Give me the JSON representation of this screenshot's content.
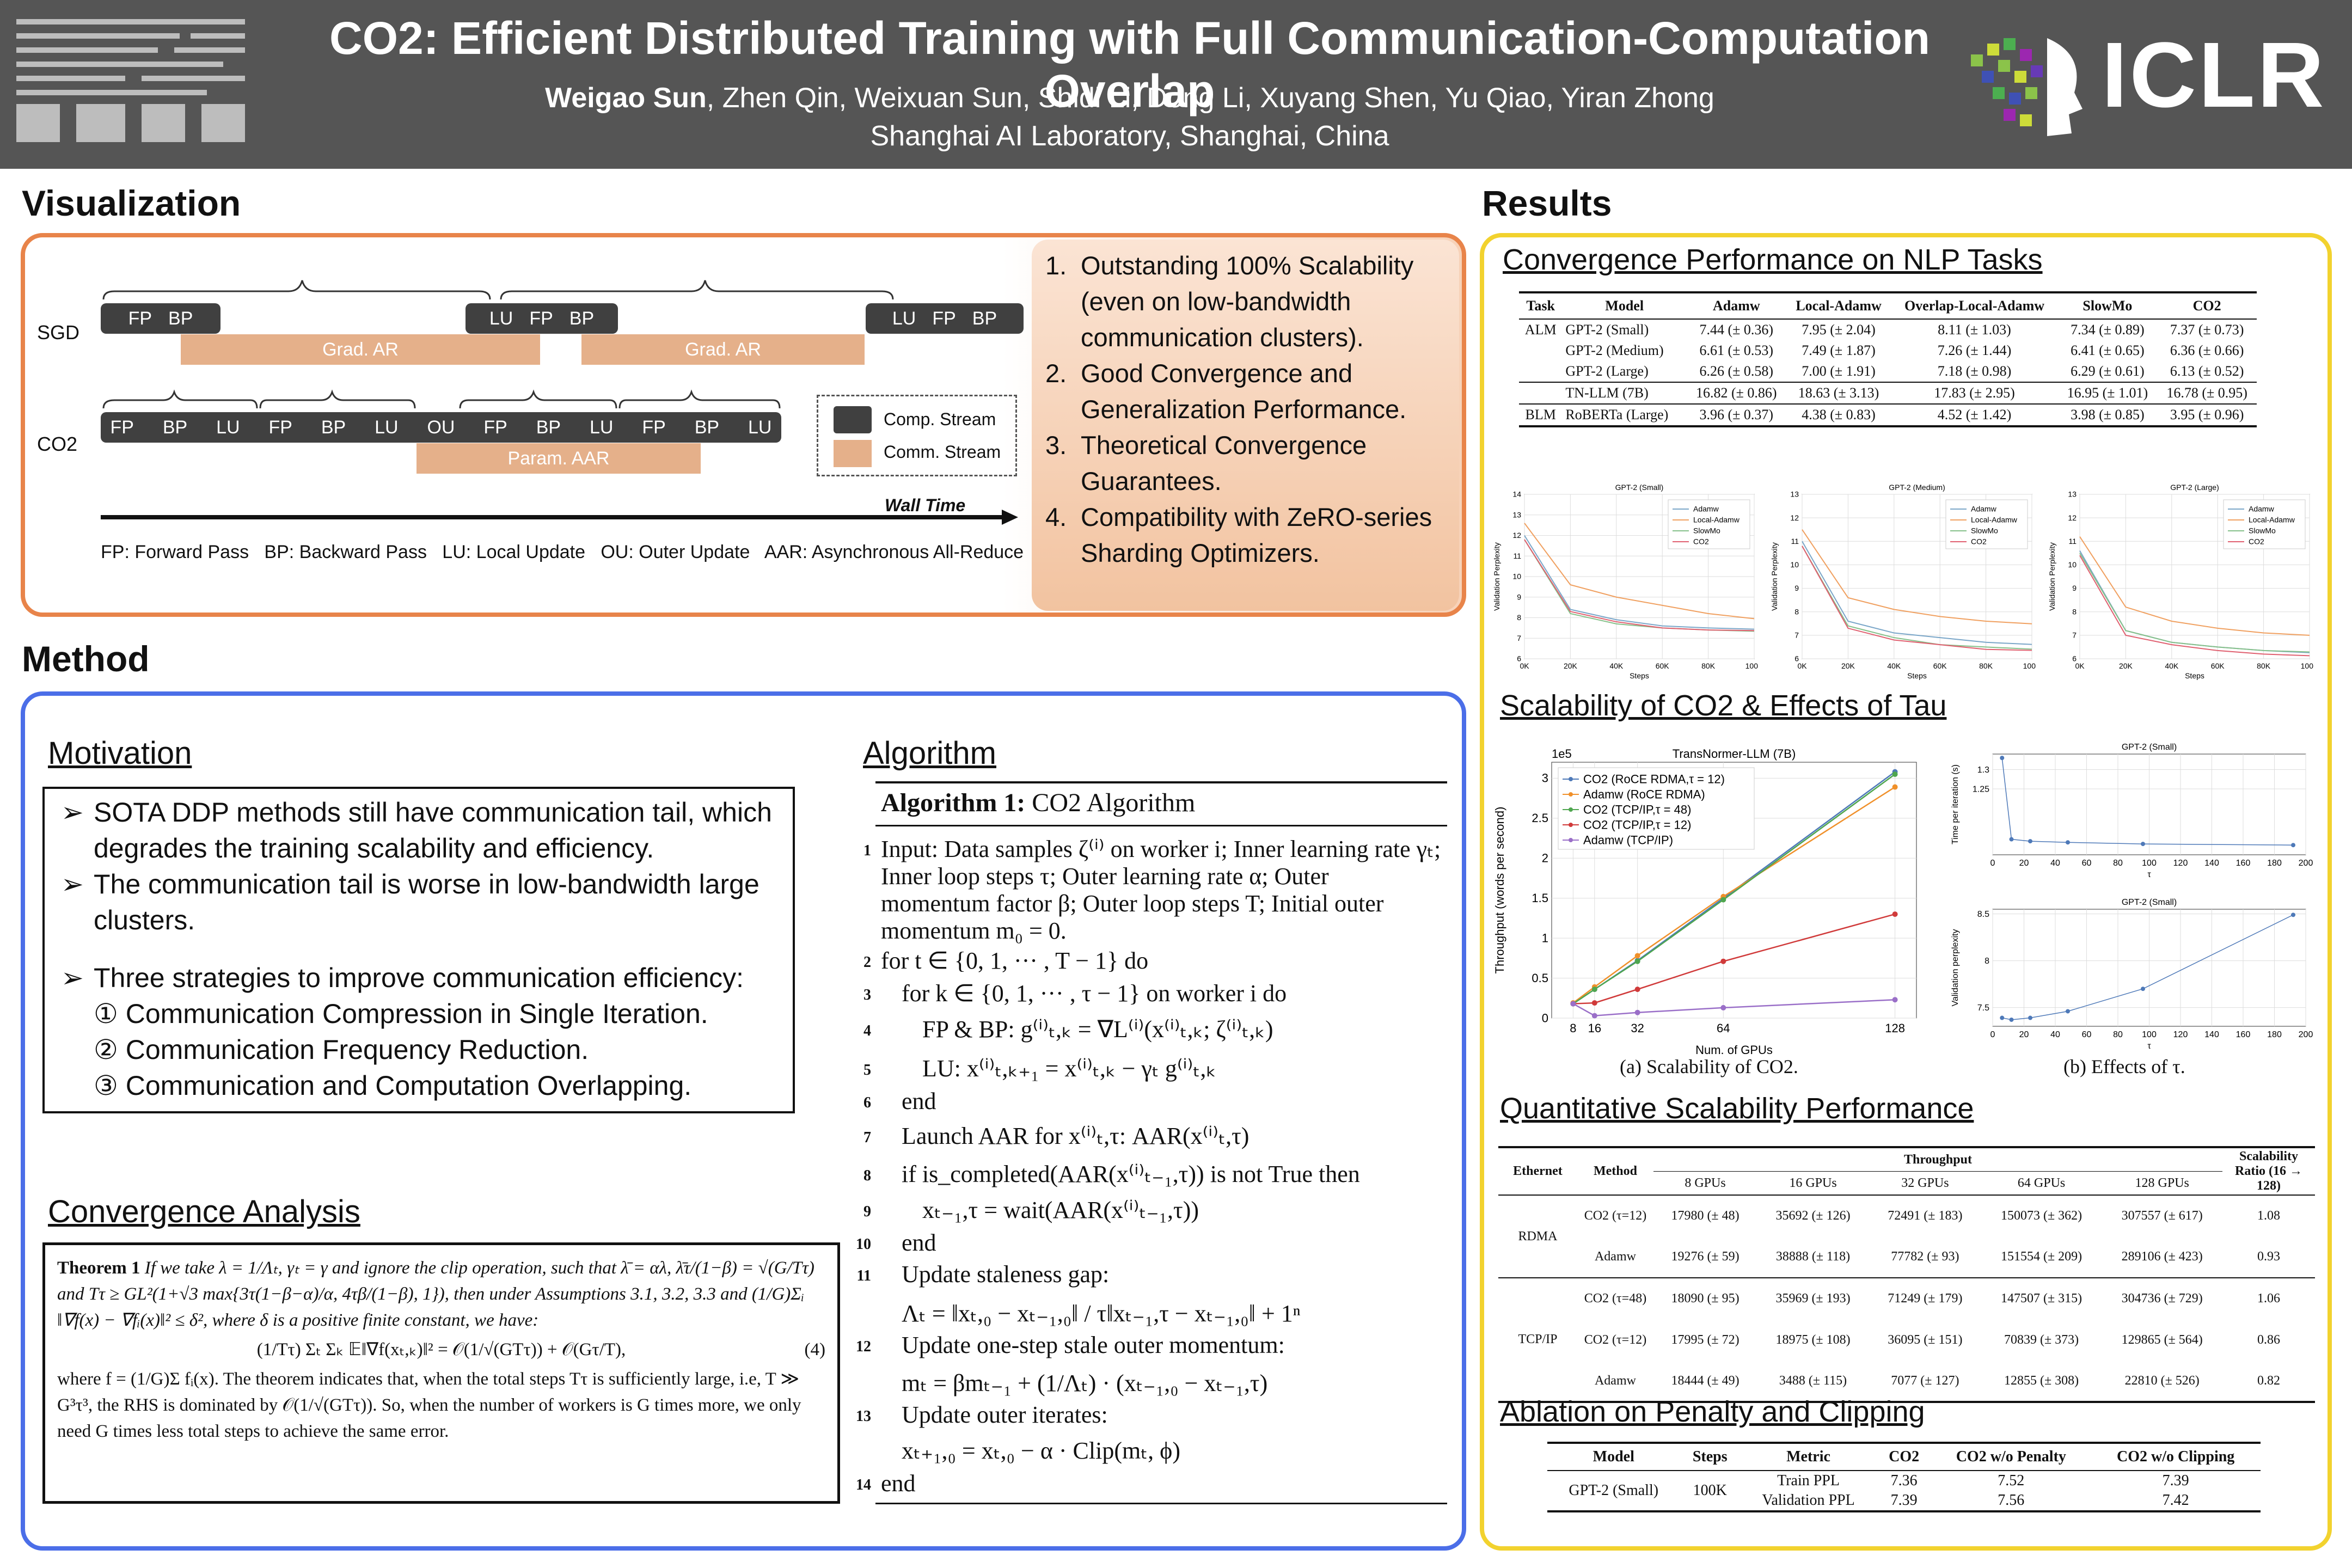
{
  "header": {
    "title": "CO2: Efficient Distributed Training with Full Communication-Computation Overlap",
    "first_author": "Weigao Sun",
    "other_authors": ", Zhen Qin, Weixuan Sun, Shidi Li, Dong Li, Xuyang Shen, Yu Qiao, Yiran Zhong",
    "affiliation": "Shanghai AI Laboratory, Shanghai, China",
    "conference": "ICLR"
  },
  "visualization": {
    "heading": "Visualization",
    "row_sgd": "SGD",
    "row_co2": "CO2",
    "fp": "FP",
    "bp": "BP",
    "lu": "LU",
    "ou": "OU",
    "grad_ar": "Grad. AR",
    "param_aar": "Param. AAR",
    "legend_comp": "Comp.  Stream",
    "legend_comm": "Comm. Stream",
    "wall_time": "Wall Time",
    "caption": "FP: Forward Pass   BP: Backward Pass   LU: Local Update   OU: Outer Update   AAR: Asynchronous All-Reduce",
    "highlights": [
      "Outstanding 100% Scalability (even on low-bandwidth communication clusters).",
      "Good Convergence and Generalization Performance.",
      "Theoretical Convergence Guarantees.",
      "Compatibility with ZeRO-series Sharding Optimizers."
    ]
  },
  "method": {
    "heading": "Method",
    "motivation_title": "Motivation",
    "motivation_points": [
      "SOTA DDP methods still have communication tail, which degrades the training scalability and efficiency.",
      "The communication tail is worse in low-bandwidth large clusters.",
      "Three strategies to improve communication efficiency:"
    ],
    "strategies": [
      "① Communication Compression in Single Iteration.",
      "② Communication Frequency Reduction.",
      "③ Communication and Computation Overlapping."
    ],
    "convergence_title": "Convergence Analysis",
    "theorem_label": "Theorem 1",
    "theorem_text": "If we take λ = 1/Λₜ, γₜ = γ and ignore the clip operation, such that λ̄ = αλ, λ̄τ/(1−β) = √(G/Tτ) and Tτ ≥ GL²(1+√3 max{3τ(1−β−α)/α, 4τβ/(1−β), 1}), then under Assumptions 3.1, 3.2, 3.3 and (1/G)Σᵢ ‖∇f(x) − ∇fᵢ(x)‖² ≤ δ², where δ is a positive finite constant, we have:",
    "theorem_eq": "(1/Tτ) Σₜ Σₖ 𝔼‖∇f(xₜ,ₖ)‖² = 𝒪(1/√(GTτ)) + 𝒪(Gτ/T),",
    "theorem_eq_no": "(4)",
    "theorem_after": "where f = (1/G)Σ fᵢ(x). The theorem indicates that, when the total steps Tτ is sufficiently large, i.e, T ≫ G³τ³, the RHS is dominated by 𝒪(1/√(GTτ)). So, when the number of workers is G times more, we only need G times less total steps to achieve the same error.",
    "algorithm_title": "Algorithm",
    "algo_header": "Algorithm 1:",
    "algo_name": "CO2 Algorithm",
    "algo_lines": [
      {
        "n": "1",
        "text": "Input: Data samples ζ⁽ⁱ⁾ on worker i; Inner learning rate γₜ; Inner loop steps τ; Outer learning rate α; Outer momentum factor β; Outer loop steps T; Initial outer momentum m₀ = 0."
      },
      {
        "n": "2",
        "text": "for t ∈ {0, 1, ··· , T − 1} do"
      },
      {
        "n": "3",
        "text": "for k ∈ {0, 1, ··· , τ − 1} on worker i do"
      },
      {
        "n": "4",
        "text": "FP & BP: g⁽ⁱ⁾ₜ,ₖ = ∇L⁽ⁱ⁾(x⁽ⁱ⁾ₜ,ₖ; ζ⁽ⁱ⁾ₜ,ₖ)"
      },
      {
        "n": "5",
        "text": "LU: x⁽ⁱ⁾ₜ,ₖ₊₁ = x⁽ⁱ⁾ₜ,ₖ − γₜ g⁽ⁱ⁾ₜ,ₖ"
      },
      {
        "n": "6",
        "text": "end"
      },
      {
        "n": "7",
        "text": "Launch AAR for x⁽ⁱ⁾ₜ,τ: AAR(x⁽ⁱ⁾ₜ,τ)"
      },
      {
        "n": "8",
        "text": "if is_completed(AAR(x⁽ⁱ⁾ₜ₋₁,τ)) is not True then"
      },
      {
        "n": "9",
        "text": "xₜ₋₁,τ = wait(AAR(x⁽ⁱ⁾ₜ₋₁,τ))"
      },
      {
        "n": "10",
        "text": "end"
      },
      {
        "n": "11",
        "text": "Update staleness gap:"
      },
      {
        "n": "",
        "text": "Λₜ = ‖xₜ,₀ − xₜ₋₁,₀‖ / τ‖xₜ₋₁,τ − xₜ₋₁,₀‖ + 1ⁿ"
      },
      {
        "n": "12",
        "text": "Update one-step stale outer momentum:"
      },
      {
        "n": "",
        "text": "mₜ = βmₜ₋₁ + (1/Λₜ) · (xₜ₋₁,₀ − xₜ₋₁,τ)"
      },
      {
        "n": "13",
        "text": "Update outer iterates:"
      },
      {
        "n": "",
        "text": "xₜ₊₁,₀ = xₜ,₀ − α · Clip(mₜ, ϕ)"
      },
      {
        "n": "14",
        "text": "end"
      }
    ]
  },
  "results": {
    "heading": "Results",
    "nlp_title": "Convergence Performance on NLP Tasks",
    "nlp_cols": [
      "Task",
      "Model",
      "Adamw",
      "Local-Adamw",
      "Overlap-Local-Adamw",
      "SlowMo",
      "CO2"
    ],
    "nlp_rows": [
      [
        "ALM",
        "GPT-2 (Small)",
        "7.44 (± 0.36)",
        "7.95 (± 2.04)",
        "8.11 (± 1.03)",
        "7.34 (± 0.89)",
        "7.37 (± 0.73)"
      ],
      [
        "",
        "GPT-2 (Medium)",
        "6.61 (± 0.53)",
        "7.49 (± 1.87)",
        "7.26 (± 1.44)",
        "6.41 (± 0.65)",
        "6.36 (± 0.66)"
      ],
      [
        "",
        "GPT-2 (Large)",
        "6.26 (± 0.58)",
        "7.00 (± 1.91)",
        "7.18 (± 0.98)",
        "6.29 (± 0.61)",
        "6.13 (± 0.52)"
      ],
      [
        "",
        "TN-LLM (7B)",
        "16.82 (± 0.86)",
        "18.63 (± 3.13)",
        "17.83 (± 2.95)",
        "16.95 (± 1.01)",
        "16.78 (± 0.95)"
      ],
      [
        "BLM",
        "RoBERTa (Large)",
        "3.96 (± 0.37)",
        "4.38 (± 0.83)",
        "4.52 (± 1.42)",
        "3.98 (± 0.85)",
        "3.95 (± 0.96)"
      ]
    ],
    "scal_title": "Scalability of CO2 & Effects of Tau",
    "scal_caption_a": "(a) Scalability of CO2.",
    "scal_caption_b": "(b) Effects of τ.",
    "quant_title": "Quantitative Scalability Performance",
    "quant_head": {
      "ethernet": "Ethernet",
      "method": "Method",
      "throughput": "Throughput",
      "ratio": "Scalability Ratio (16 → 128)",
      "gpus": [
        "8 GPUs",
        "16 GPUs",
        "32 GPUs",
        "64 GPUs",
        "128 GPUs"
      ]
    },
    "quant_rows": [
      {
        "eth": "RDMA",
        "method": "CO2 (τ=12)",
        "vals": [
          "17980 (± 48)",
          "35692 (± 126)",
          "72491 (± 183)",
          "150073 (± 362)",
          "307557 (± 617)"
        ],
        "ratio": "1.08"
      },
      {
        "eth": "",
        "method": "Adamw",
        "vals": [
          "19276 (± 59)",
          "38888 (± 118)",
          "77782 (± 93)",
          "151554 (± 209)",
          "289106 (± 423)"
        ],
        "ratio": "0.93"
      },
      {
        "eth": "TCP/IP",
        "method": "CO2 (τ=48)",
        "vals": [
          "18090 (± 95)",
          "35969 (± 193)",
          "71249 (± 179)",
          "147507 (± 315)",
          "304736 (± 729)"
        ],
        "ratio": "1.06"
      },
      {
        "eth": "",
        "method": "CO2 (τ=12)",
        "vals": [
          "17995 (± 72)",
          "18975 (± 108)",
          "36095 (± 151)",
          "70839 (± 373)",
          "129865 (± 564)"
        ],
        "ratio": "0.86"
      },
      {
        "eth": "",
        "method": "Adamw",
        "vals": [
          "18444 (± 49)",
          "3488 (± 115)",
          "7077 (± 127)",
          "12855 (± 308)",
          "22810 (± 526)"
        ],
        "ratio": "0.82"
      }
    ],
    "ablation_title": "Ablation on Penalty and Clipping",
    "ablation_cols": [
      "Model",
      "Steps",
      "Metric",
      "CO2",
      "CO2 w/o Penalty",
      "CO2 w/o Clipping"
    ],
    "ablation_model": "GPT-2 (Small)",
    "ablation_steps": "100K",
    "ablation_rows": [
      [
        "Train PPL",
        "7.36",
        "7.52",
        "7.39"
      ],
      [
        "Validation PPL",
        "7.39",
        "7.56",
        "7.42"
      ]
    ]
  },
  "chart_data": [
    {
      "type": "line",
      "title": "GPT-2 (Small)",
      "xlabel": "Steps",
      "ylabel": "Validation Perplexity",
      "x": [
        0,
        20000,
        40000,
        60000,
        80000,
        100000
      ],
      "xticks": [
        "0K",
        "20K",
        "40K",
        "60K",
        "80K",
        "100K"
      ],
      "ylim": [
        6,
        14
      ],
      "yticks": [
        6,
        7,
        8,
        9,
        10,
        11,
        12,
        13,
        14
      ],
      "legend": "top-right",
      "series": [
        {
          "name": "Adamw",
          "color": "#7aa6c8",
          "values": [
            12.0,
            8.4,
            7.9,
            7.6,
            7.5,
            7.44
          ]
        },
        {
          "name": "Local-Adamw",
          "color": "#f0a060",
          "values": [
            12.6,
            9.6,
            9.0,
            8.6,
            8.2,
            7.95
          ]
        },
        {
          "name": "SlowMo",
          "color": "#86c08a",
          "values": [
            11.8,
            8.2,
            7.7,
            7.5,
            7.4,
            7.34
          ]
        },
        {
          "name": "CO2",
          "color": "#e06070",
          "values": [
            11.8,
            8.3,
            7.8,
            7.5,
            7.4,
            7.37
          ]
        }
      ]
    },
    {
      "type": "line",
      "title": "GPT-2 (Medium)",
      "xlabel": "Steps",
      "ylabel": "Validation Perplexity",
      "x": [
        0,
        20000,
        40000,
        60000,
        80000,
        100000
      ],
      "xticks": [
        "0K",
        "20K",
        "40K",
        "60K",
        "80K",
        "100K"
      ],
      "ylim": [
        6,
        13
      ],
      "yticks": [
        6,
        7,
        8,
        9,
        10,
        11,
        12,
        13
      ],
      "legend": "top-right",
      "series": [
        {
          "name": "Adamw",
          "color": "#7aa6c8",
          "values": [
            11.0,
            7.6,
            7.1,
            6.9,
            6.7,
            6.61
          ]
        },
        {
          "name": "Local-Adamw",
          "color": "#f0a060",
          "values": [
            11.5,
            8.6,
            8.1,
            7.8,
            7.6,
            7.49
          ]
        },
        {
          "name": "SlowMo",
          "color": "#86c08a",
          "values": [
            10.8,
            7.4,
            6.9,
            6.6,
            6.5,
            6.41
          ]
        },
        {
          "name": "CO2",
          "color": "#e06070",
          "values": [
            10.8,
            7.3,
            6.8,
            6.6,
            6.4,
            6.36
          ]
        }
      ]
    },
    {
      "type": "line",
      "title": "GPT-2 (Large)",
      "xlabel": "Steps",
      "ylabel": "Validation Perplexity",
      "x": [
        0,
        20000,
        40000,
        60000,
        80000,
        100000
      ],
      "xticks": [
        "0K",
        "20K",
        "40K",
        "60K",
        "80K",
        "100K"
      ],
      "ylim": [
        6,
        13
      ],
      "yticks": [
        6,
        7,
        8,
        9,
        10,
        11,
        12,
        13
      ],
      "legend": "top-right",
      "series": [
        {
          "name": "Adamw",
          "color": "#7aa6c8",
          "values": [
            10.6,
            7.2,
            6.7,
            6.5,
            6.35,
            6.26
          ]
        },
        {
          "name": "Local-Adamw",
          "color": "#f0a060",
          "values": [
            11.2,
            8.2,
            7.6,
            7.3,
            7.1,
            7.0
          ]
        },
        {
          "name": "SlowMo",
          "color": "#86c08a",
          "values": [
            10.5,
            7.2,
            6.7,
            6.5,
            6.35,
            6.29
          ]
        },
        {
          "name": "CO2",
          "color": "#e06070",
          "values": [
            10.4,
            7.0,
            6.6,
            6.35,
            6.2,
            6.13
          ]
        }
      ]
    },
    {
      "type": "line",
      "title": "TransNormer-LLM (7B)",
      "xlabel": "Num. of GPUs",
      "ylabel": "Throughput (words per second)",
      "x": [
        8,
        16,
        32,
        64,
        128
      ],
      "xticks": [
        "8",
        "16",
        "32",
        "64",
        "128"
      ],
      "ylim": [
        0,
        3.2
      ],
      "yticks": [
        0,
        0.5,
        1.0,
        1.5,
        2.0,
        2.5,
        3.0
      ],
      "y_multiplier": "1e5",
      "legend": "top-left",
      "series": [
        {
          "name": "CO2 (RoCE RDMA,τ = 12)",
          "color": "#4e79b8",
          "values": [
            0.18,
            0.36,
            0.72,
            1.5,
            3.08
          ]
        },
        {
          "name": "Adamw (RoCE RDMA)",
          "color": "#f0902a",
          "values": [
            0.19,
            0.39,
            0.78,
            1.52,
            2.89
          ]
        },
        {
          "name": "CO2 (TCP/IP,τ = 48)",
          "color": "#4fa64f",
          "values": [
            0.18,
            0.36,
            0.71,
            1.48,
            3.05
          ]
        },
        {
          "name": "CO2 (TCP/IP,τ = 12)",
          "color": "#d03a3a",
          "values": [
            0.18,
            0.19,
            0.36,
            0.71,
            1.3
          ]
        },
        {
          "name": "Adamw (TCP/IP)",
          "color": "#9a6fc8",
          "values": [
            0.18,
            0.03,
            0.07,
            0.13,
            0.23
          ]
        }
      ]
    },
    {
      "type": "line",
      "title": "GPT-2 (Small)",
      "xlabel": "τ",
      "ylabel": "Time per iteration (s)",
      "x": [
        6,
        12,
        24,
        48,
        96,
        192
      ],
      "xticks": [
        "0",
        "20",
        "40",
        "60",
        "80",
        "100",
        "120",
        "140",
        "160",
        "180",
        "200"
      ],
      "ylim": [
        1.08,
        1.34
      ],
      "yticks": [
        1.25,
        1.3
      ],
      "legend": "none",
      "series": [
        {
          "name": "",
          "color": "#4e79b8",
          "values": [
            1.33,
            1.12,
            1.115,
            1.112,
            1.108,
            1.105
          ]
        }
      ]
    },
    {
      "type": "line",
      "title": "GPT-2 (Small)",
      "xlabel": "τ",
      "ylabel": "Validation perplexity",
      "x": [
        6,
        12,
        24,
        48,
        96,
        192
      ],
      "xticks": [
        "0",
        "20",
        "40",
        "60",
        "80",
        "100",
        "120",
        "140",
        "160",
        "180",
        "200"
      ],
      "ylim": [
        7.3,
        8.55
      ],
      "yticks": [
        7.5,
        8.0,
        8.5
      ],
      "legend": "none",
      "series": [
        {
          "name": "",
          "color": "#4e79b8",
          "values": [
            7.39,
            7.37,
            7.39,
            7.46,
            7.7,
            8.49
          ]
        }
      ]
    }
  ]
}
